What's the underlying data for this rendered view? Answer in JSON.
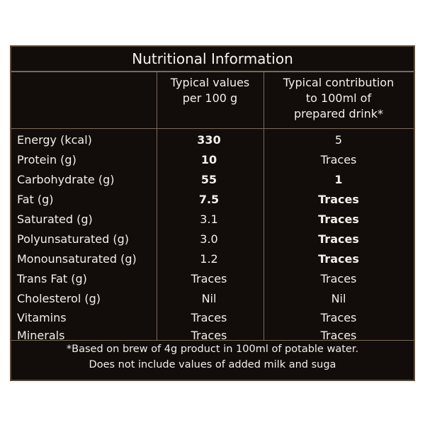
{
  "title": "Nutritional Information",
  "headers": {
    "col_a": [
      "Typical values",
      "per 100 g"
    ],
    "col_b": [
      "Typical contribution",
      "to 100ml of",
      "prepared drink*"
    ]
  },
  "rows": [
    {
      "name": "Energy (kcal)",
      "a": "330",
      "b": "5"
    },
    {
      "name": "Protein (g)",
      "a": "10",
      "b": "Traces"
    },
    {
      "name": "Carbohydrate (g)",
      "a": "55",
      "b": "1"
    },
    {
      "name": "Fat (g)",
      "a": "7.5",
      "b": "Traces"
    },
    {
      "name": "Saturated (g)",
      "a": "3.1",
      "b": "Traces"
    },
    {
      "name": "Polyunsaturated (g)",
      "a": "3.0",
      "b": "Traces"
    },
    {
      "name": "Monounsaturated (g)",
      "a": "1.2",
      "b": "Traces"
    },
    {
      "name": "Trans Fat (g)",
      "a": "Traces",
      "b": "Traces"
    },
    {
      "name": "Cholesterol (g)",
      "a": "Nil",
      "b": "Nil"
    },
    {
      "name": "Vitamins",
      "a": "Traces",
      "b": "Traces"
    },
    {
      "name": "Minerals",
      "a": "Traces",
      "b": "Traces"
    }
  ],
  "footnote": [
    "*Based on brew of 4g product in 100ml of potable water.",
    "Does not include values of added milk and suga"
  ]
}
